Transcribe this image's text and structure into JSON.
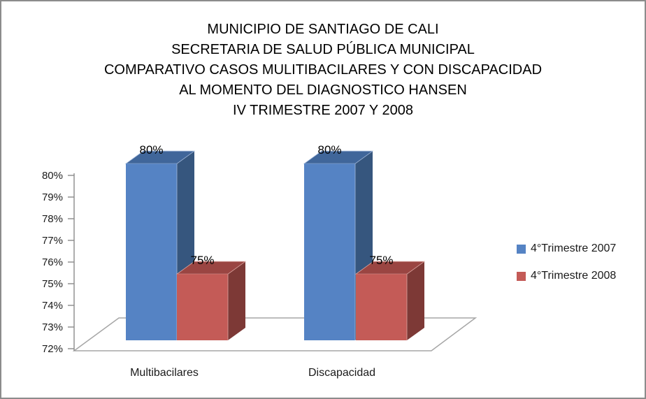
{
  "frame": {
    "border_color": "#8C8C8C",
    "background": "#FFFFFF"
  },
  "chart_data": {
    "type": "bar",
    "subtype": "3d-clustered-column",
    "title": "MUNICIPIO DE SANTIAGO DE CALI SECRETARIA DE SALUD PÚBLICA MUNICIPAL COMPARATIVO CASOS MULITIBACILARES Y CON DISCAPACIDAD AL MOMENTO DEL DIAGNOSTICO HANSEN IV TRIMESTRE 2007 Y 2008",
    "title_lines": [
      "MUNICIPIO DE SANTIAGO DE CALI",
      "SECRETARIA DE SALUD PÚBLICA MUNICIPAL",
      "COMPARATIVO CASOS MULITIBACILARES Y CON DISCAPACIDAD",
      "AL MOMENTO DEL DIAGNOSTICO HANSEN",
      "IV TRIMESTRE 2007 Y 2008"
    ],
    "xlabel": "",
    "ylabel": "",
    "categories": [
      "Multibacilares",
      "Discapacidad"
    ],
    "series": [
      {
        "name": "4°Trimestre 2007",
        "values": [
          80,
          80
        ],
        "data_labels": [
          "80%",
          "80%"
        ],
        "color_front": "#5583C4",
        "color_top": "#40669A",
        "color_side": "#36567E",
        "color_edge": "#A3B9DB"
      },
      {
        "name": "4°Trimestre 2008",
        "values": [
          75,
          75
        ],
        "data_labels": [
          "75%",
          "75%"
        ],
        "color_front": "#C45B57",
        "color_top": "#9A4542",
        "color_side": "#7D3936",
        "color_edge": "#DBA49F"
      }
    ],
    "y_axis": {
      "min": 72,
      "max": 80,
      "step": 1,
      "tick_labels": [
        "72%",
        "73%",
        "74%",
        "75%",
        "76%",
        "77%",
        "78%",
        "79%",
        "80%"
      ]
    },
    "ylim": [
      72,
      80
    ],
    "grid": false,
    "legend_position": "right",
    "axis_color": "#8A8A8A",
    "floor_color": "#A6A6A6",
    "text_color": "#1A1A1A"
  }
}
